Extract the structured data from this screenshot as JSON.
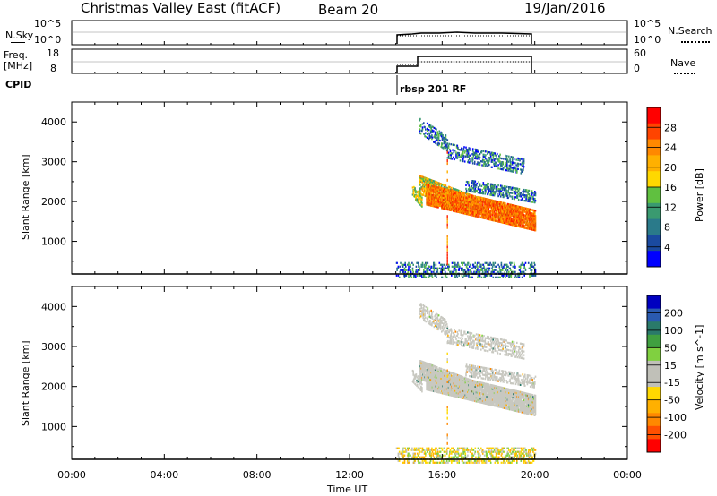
{
  "header": {
    "site": "Christmas Valley East (fitACF)",
    "beam": "Beam 20",
    "date": "19/Jan/2016"
  },
  "top_panels": {
    "nsky_label": "N.Sky",
    "nsky_ticks": [
      "10^5",
      "10^0"
    ],
    "nsearch_label": "N.Search",
    "freq_label_1": "Freq.",
    "freq_label_2": "[MHz]",
    "freq_ticks": [
      "18",
      "8"
    ],
    "nave_ticks": [
      "60",
      "0"
    ],
    "nave_label": "Nave",
    "cpid_label": "CPID",
    "cpid_text": "rbsp 201 RF"
  },
  "power_colorbar": {
    "label": "Power [dB]",
    "ticks": [
      "28",
      "24",
      "20",
      "16",
      "12",
      "8",
      "4"
    ],
    "colors": [
      "#ff0000",
      "#ff4400",
      "#ff8800",
      "#ffb000",
      "#ffd800",
      "#60c040",
      "#3a9a70",
      "#2a7a8a",
      "#1a4aa0",
      "#0000ff"
    ]
  },
  "velocity_colorbar": {
    "label": "Velocity [m s^-1]",
    "ticks": [
      "200",
      "100",
      "50",
      "15",
      "-15",
      "-50",
      "-100",
      "-200"
    ],
    "colors": [
      "#0000c0",
      "#2a5ab0",
      "#2a7a6a",
      "#40a040",
      "#80d040",
      "#c0c0b8",
      "#c0c0b8",
      "#ffd800",
      "#ffb000",
      "#ff8800",
      "#ff5000",
      "#ff0000"
    ]
  },
  "chart_data": [
    {
      "type": "heatmap",
      "title": "Power",
      "xlabel": "Time UT",
      "ylabel": "Slant Range [km]",
      "x_ticks": [
        "00:00",
        "04:00",
        "08:00",
        "12:00",
        "16:00",
        "20:00",
        "00:00"
      ],
      "xlim": [
        0,
        24
      ],
      "y_ticks": [
        1000,
        2000,
        3000,
        4000
      ],
      "ylim": [
        180,
        4500
      ],
      "bands": [
        {
          "t0": 14.7,
          "t1": 15.1,
          "r_start": 2300,
          "r_end": 2050,
          "width": 150,
          "level": "medium",
          "density": 0.5
        },
        {
          "t0": 15.0,
          "t1": 17.5,
          "r_start": 2450,
          "r_end": 1900,
          "width": 230,
          "level": "medium-high",
          "density": 0.7
        },
        {
          "t0": 15.3,
          "t1": 20.0,
          "r_start": 2200,
          "r_end": 1550,
          "width": 250,
          "level": "high",
          "density": 0.8
        },
        {
          "t0": 17.0,
          "t1": 20.0,
          "r_start": 2450,
          "r_end": 2150,
          "width": 150,
          "level": "low",
          "density": 0.35
        },
        {
          "t0": 15.0,
          "t1": 16.2,
          "r_start": 3950,
          "r_end": 3500,
          "width": 200,
          "level": "low",
          "density": 0.35
        },
        {
          "t0": 16.2,
          "t1": 19.5,
          "r_start": 3300,
          "r_end": 2900,
          "width": 180,
          "level": "low",
          "density": 0.3
        },
        {
          "t0": 14.0,
          "t1": 20.0,
          "r_start": 320,
          "r_end": 320,
          "width": 200,
          "level": "low",
          "density": 0.25
        }
      ],
      "spike_time": 16.2
    },
    {
      "type": "heatmap",
      "title": "Velocity",
      "xlabel": "Time UT",
      "ylabel": "Slant Range [km]",
      "x_ticks": [
        "00:00",
        "04:00",
        "08:00",
        "12:00",
        "16:00",
        "20:00",
        "00:00"
      ],
      "xlim": [
        0,
        24
      ],
      "y_ticks": [
        1000,
        2000,
        3000,
        4000
      ],
      "ylim": [
        180,
        4500
      ],
      "bands": [
        {
          "t0": 14.7,
          "t1": 15.1,
          "r_start": 2300,
          "r_end": 2050,
          "width": 150,
          "level": "ground",
          "density": 0.5
        },
        {
          "t0": 15.0,
          "t1": 17.5,
          "r_start": 2450,
          "r_end": 1900,
          "width": 230,
          "level": "ground",
          "density": 0.75
        },
        {
          "t0": 15.3,
          "t1": 20.0,
          "r_start": 2200,
          "r_end": 1550,
          "width": 250,
          "level": "ground",
          "density": 0.85
        },
        {
          "t0": 17.0,
          "t1": 20.0,
          "r_start": 2450,
          "r_end": 2150,
          "width": 150,
          "level": "ground",
          "density": 0.35
        },
        {
          "t0": 15.0,
          "t1": 16.2,
          "r_start": 3950,
          "r_end": 3500,
          "width": 200,
          "level": "ground",
          "density": 0.35
        },
        {
          "t0": 16.2,
          "t1": 19.5,
          "r_start": 3300,
          "r_end": 2900,
          "width": 180,
          "level": "ground",
          "density": 0.3
        },
        {
          "t0": 14.0,
          "t1": 20.0,
          "r_start": 320,
          "r_end": 320,
          "width": 200,
          "level": "negative",
          "density": 0.3
        }
      ],
      "spike_time": 16.2
    }
  ]
}
